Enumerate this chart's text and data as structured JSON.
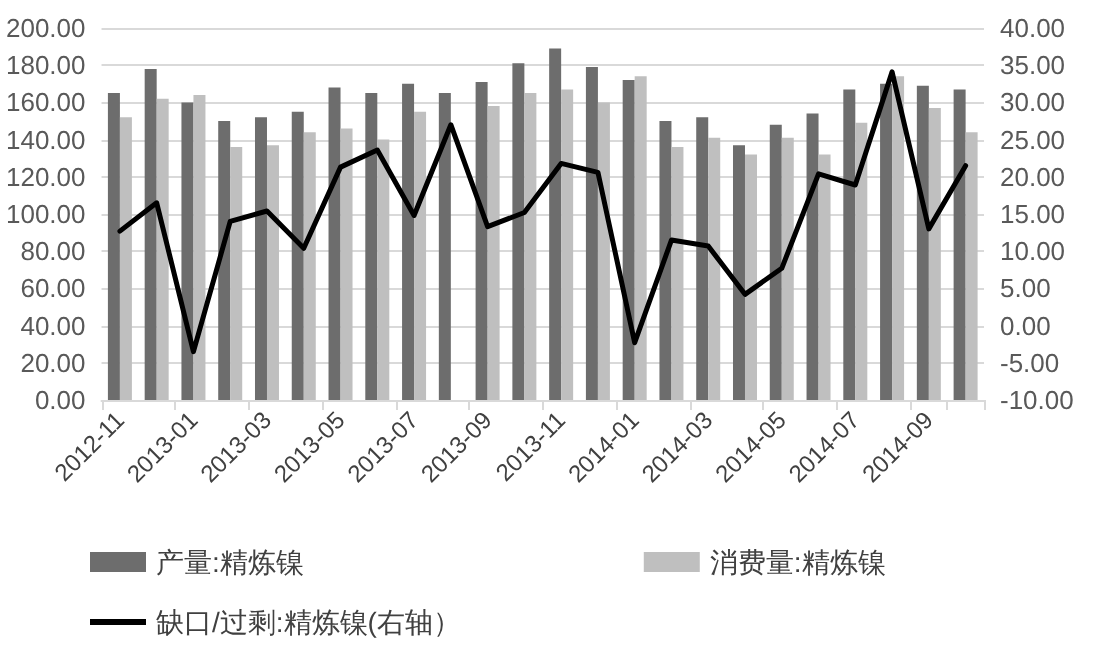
{
  "chart_data": {
    "type": "bar",
    "categories": [
      "2012-11",
      null,
      "2013-01",
      null,
      "2013-03",
      null,
      "2013-05",
      null,
      "2013-07",
      null,
      "2013-09",
      null,
      "2013-11",
      null,
      "2014-01",
      null,
      "2014-03",
      null,
      "2014-05",
      null,
      "2014-07",
      null,
      "2014-09",
      null
    ],
    "series": [
      {
        "name": "产量:精炼镍",
        "color": "#6d6d6d",
        "values": [
          165,
          178,
          160,
          150,
          152,
          155,
          168,
          165,
          170,
          165,
          171,
          181,
          189,
          179,
          172,
          150,
          152,
          137,
          148,
          154,
          167,
          170,
          169,
          167
        ]
      },
      {
        "name": "消费量:精炼镍",
        "color": "#bfbfbf",
        "values": [
          152,
          162,
          164,
          136,
          137,
          144,
          146,
          140,
          155,
          null,
          158,
          165,
          167,
          160,
          174,
          136,
          141,
          132,
          141,
          132,
          149,
          174,
          157,
          144
        ]
      },
      {
        "name": "缺口/过剩:精炼镍(右轴）",
        "type": "line",
        "axis": "y2",
        "color": "#000000",
        "values": [
          12.7,
          16.5,
          -3.5,
          14,
          15.4,
          10.4,
          21.3,
          23.6,
          14.8,
          27,
          13.3,
          15.2,
          21.8,
          20.6,
          -2.3,
          11.5,
          10.7,
          4.2,
          7.7,
          20.4,
          18.9,
          34.1,
          13,
          21.5
        ]
      }
    ],
    "ylim": [
      0,
      200
    ],
    "yticks": [
      {
        "value": 0,
        "label": "0.00"
      },
      {
        "value": 20,
        "label": "20.00"
      },
      {
        "value": 40,
        "label": "40.00"
      },
      {
        "value": 60,
        "label": "60.00"
      },
      {
        "value": 80,
        "label": "80.00"
      },
      {
        "value": 100,
        "label": "100.00"
      },
      {
        "value": 120,
        "label": "120.00"
      },
      {
        "value": 140,
        "label": "140.00"
      },
      {
        "value": 160,
        "label": "160.00"
      },
      {
        "value": 180,
        "label": "180.00"
      },
      {
        "value": 200,
        "label": "200.00"
      }
    ],
    "y2lim": [
      -10,
      40
    ],
    "y2ticks": [
      {
        "value": -10,
        "label": "-10.00"
      },
      {
        "value": -5,
        "label": "-5.00"
      },
      {
        "value": 0,
        "label": "0.00"
      },
      {
        "value": 5,
        "label": "5.00"
      },
      {
        "value": 10,
        "label": "10.00"
      },
      {
        "value": 15,
        "label": "15.00"
      },
      {
        "value": 20,
        "label": "20.00"
      },
      {
        "value": 25,
        "label": "25.00"
      },
      {
        "value": 30,
        "label": "30.00"
      },
      {
        "value": 35,
        "label": "35.00"
      },
      {
        "value": 40,
        "label": "40.00"
      }
    ],
    "grid": "y",
    "legend": "bottom",
    "marker": "none",
    "line_style": "solid"
  }
}
